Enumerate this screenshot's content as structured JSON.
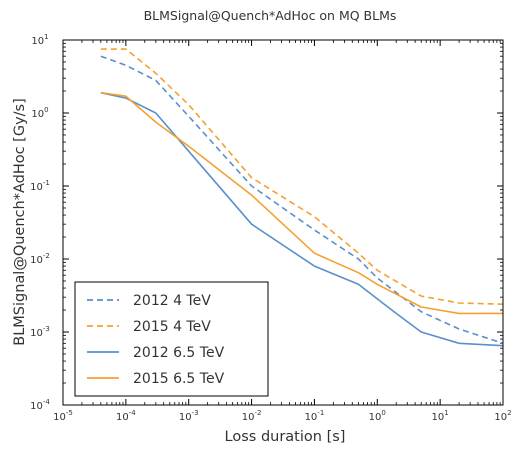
{
  "chart_data": {
    "type": "line",
    "title": "BLMSignal@Quench*AdHoc  on MQ BLMs",
    "xlabel": "Loss duration [s]",
    "ylabel": "BLMSignal@Quench*AdHoc [Gy/s]",
    "xscale": "log",
    "yscale": "log",
    "xlim": [
      1e-05,
      100
    ],
    "ylim": [
      0.0001,
      10
    ],
    "x_ticks": [
      {
        "base": "10",
        "exp": "-5"
      },
      {
        "base": "10",
        "exp": "-4"
      },
      {
        "base": "10",
        "exp": "-3"
      },
      {
        "base": "10",
        "exp": "-2"
      },
      {
        "base": "10",
        "exp": "-1"
      },
      {
        "base": "10",
        "exp": "0"
      },
      {
        "base": "10",
        "exp": "1"
      },
      {
        "base": "10",
        "exp": "2"
      }
    ],
    "y_ticks": [
      {
        "base": "10",
        "exp": "-4"
      },
      {
        "base": "10",
        "exp": "-3"
      },
      {
        "base": "10",
        "exp": "-2"
      },
      {
        "base": "10",
        "exp": "-1"
      },
      {
        "base": "10",
        "exp": "0"
      },
      {
        "base": "10",
        "exp": "1"
      }
    ],
    "grid": false,
    "legend_position": "lower-left",
    "series": [
      {
        "name": "2012 4 TeV",
        "color": "#5b8fcb",
        "dash": "dashed",
        "x": [
          4e-05,
          0.0001,
          0.0003,
          0.001,
          0.01,
          0.1,
          0.5,
          1,
          5,
          20,
          100
        ],
        "y": [
          6.0,
          4.5,
          2.8,
          0.9,
          0.1,
          0.025,
          0.01,
          0.0055,
          0.0019,
          0.0011,
          0.0007
        ]
      },
      {
        "name": "2015 4 TeV",
        "color": "#f5a030",
        "dash": "dashed",
        "x": [
          4e-05,
          0.0001,
          0.0003,
          0.001,
          0.01,
          0.1,
          0.5,
          1,
          5,
          20,
          100
        ],
        "y": [
          7.5,
          7.5,
          3.5,
          1.3,
          0.13,
          0.038,
          0.012,
          0.007,
          0.0031,
          0.0025,
          0.0024
        ]
      },
      {
        "name": "2012 6.5 TeV",
        "color": "#5b8fcb",
        "dash": "solid",
        "x": [
          4e-05,
          0.0001,
          0.0003,
          0.001,
          0.01,
          0.1,
          0.5,
          2,
          5,
          20,
          100
        ],
        "y": [
          1.9,
          1.6,
          1.0,
          0.3,
          0.03,
          0.008,
          0.0045,
          0.0018,
          0.001,
          0.0007,
          0.00065
        ]
      },
      {
        "name": "2015 6.5 TeV",
        "color": "#f5a030",
        "dash": "solid",
        "x": [
          4e-05,
          0.0001,
          0.0003,
          0.001,
          0.01,
          0.1,
          0.5,
          1,
          5,
          20,
          100
        ],
        "y": [
          1.9,
          1.7,
          0.75,
          0.35,
          0.075,
          0.012,
          0.0065,
          0.0045,
          0.0022,
          0.0018,
          0.0018
        ]
      }
    ]
  }
}
